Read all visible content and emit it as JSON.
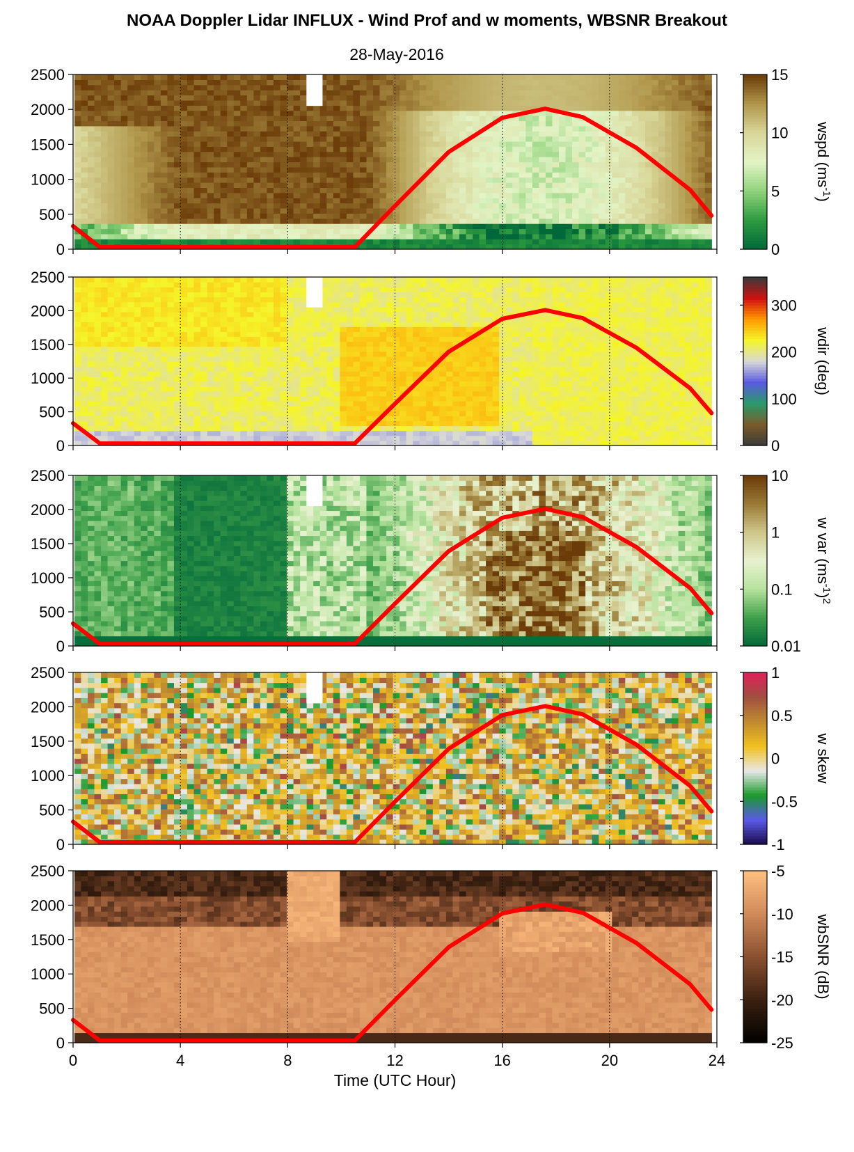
{
  "title": "NOAA Doppler Lidar INFLUX - Wind Prof and w moments, WBSNR Breakout",
  "subtitle": "28-May-2016",
  "colors": {
    "sun_curve": "#ff0000",
    "wspd": [
      "#00683a",
      "#2d9a3f",
      "#8fd27a",
      "#e3f4c6",
      "#d9d79a",
      "#b0964a",
      "#6b3b08"
    ],
    "wdir": [
      "#3a3a3a",
      "#7a5a2a",
      "#2a9a6a",
      "#5a5ae0",
      "#d8d8d8",
      "#f5f52a",
      "#ff9a00",
      "#d01010",
      "#3a3a3a"
    ],
    "wvar": [
      "#00683a",
      "#3ea04a",
      "#b5e29c",
      "#e8f2cf",
      "#cfc78b",
      "#9a7a35",
      "#6b3b08"
    ],
    "wskew": [
      "#1a0a4a",
      "#5a5ae8",
      "#1a9a2a",
      "#e8e8e8",
      "#f0c020",
      "#c08a30",
      "#a05040",
      "#e0205a"
    ],
    "wbsnr": [
      "#000000",
      "#3a2010",
      "#8a5030",
      "#d08a5a",
      "#ffbf80"
    ]
  },
  "chart_data": [
    {
      "type": "heatmap",
      "name": "wspd",
      "xlabel": "Time (UTC Hour)",
      "ylabel": "",
      "xlim": [
        0,
        24
      ],
      "ylim": [
        0,
        2500
      ],
      "x_ticks": [
        0,
        4,
        8,
        12,
        16,
        20,
        24
      ],
      "y_ticks": [
        0,
        500,
        1000,
        1500,
        2000,
        2500
      ],
      "colorbar": {
        "label": "wspd (ms",
        "label_sup": "-1",
        "label_end": ")",
        "min": 0,
        "max": 15,
        "ticks": [
          "0",
          "5",
          "10",
          "15"
        ],
        "tick_values": [
          0,
          5,
          10,
          15
        ],
        "scale": "linear"
      },
      "sun_curve": {
        "x": [
          0,
          1,
          2,
          4,
          6,
          8,
          10,
          10.5,
          12,
          14,
          16,
          17.6,
          19,
          21,
          23,
          23.8
        ],
        "y": [
          330,
          30,
          30,
          30,
          30,
          30,
          30,
          30,
          620,
          1390,
          1880,
          2010,
          1890,
          1450,
          850,
          480
        ]
      }
    },
    {
      "type": "heatmap",
      "name": "wdir",
      "xlim": [
        0,
        24
      ],
      "ylim": [
        0,
        2500
      ],
      "x_ticks": [
        0,
        4,
        8,
        12,
        16,
        20,
        24
      ],
      "y_ticks": [
        0,
        500,
        1000,
        1500,
        2000,
        2500
      ],
      "colorbar": {
        "label": "wdir (deg)",
        "min": 0,
        "max": 360,
        "ticks": [
          "0",
          "100",
          "200",
          "300"
        ],
        "tick_values": [
          0,
          100,
          200,
          300
        ],
        "scale": "linear"
      },
      "sun_curve": {
        "x": [
          0,
          1,
          2,
          4,
          6,
          8,
          10,
          10.5,
          12,
          14,
          16,
          17.6,
          19,
          21,
          23,
          23.8
        ],
        "y": [
          330,
          30,
          30,
          30,
          30,
          30,
          30,
          30,
          620,
          1390,
          1880,
          2010,
          1890,
          1450,
          850,
          480
        ]
      }
    },
    {
      "type": "heatmap",
      "name": "w var",
      "xlim": [
        0,
        24
      ],
      "ylim": [
        0,
        2500
      ],
      "x_ticks": [
        0,
        4,
        8,
        12,
        16,
        20,
        24
      ],
      "y_ticks": [
        0,
        500,
        1000,
        1500,
        2000,
        2500
      ],
      "colorbar": {
        "label": "w var (ms",
        "label_sup": "-1",
        "label_end": ")",
        "label_sup2": "2",
        "min": 0.01,
        "max": 10,
        "ticks": [
          "0.01",
          "0.1",
          "1",
          "10"
        ],
        "tick_values": [
          0.01,
          0.1,
          1,
          10
        ],
        "scale": "log"
      },
      "sun_curve": {
        "x": [
          0,
          1,
          2,
          4,
          6,
          8,
          10,
          10.5,
          12,
          14,
          16,
          17.6,
          19,
          21,
          23,
          23.8
        ],
        "y": [
          330,
          30,
          30,
          30,
          30,
          30,
          30,
          30,
          620,
          1390,
          1880,
          2010,
          1890,
          1450,
          850,
          480
        ]
      }
    },
    {
      "type": "heatmap",
      "name": "w skew",
      "xlim": [
        0,
        24
      ],
      "ylim": [
        0,
        2500
      ],
      "x_ticks": [
        0,
        4,
        8,
        12,
        16,
        20,
        24
      ],
      "y_ticks": [
        0,
        500,
        1000,
        1500,
        2000,
        2500
      ],
      "colorbar": {
        "label": "w skew",
        "min": -1,
        "max": 1,
        "ticks": [
          "-1",
          "-0.5",
          "0",
          "0.5",
          "1"
        ],
        "tick_values": [
          -1,
          -0.5,
          0,
          0.5,
          1
        ],
        "scale": "linear"
      },
      "sun_curve": {
        "x": [
          0,
          1,
          2,
          4,
          6,
          8,
          10,
          10.5,
          12,
          14,
          16,
          17.6,
          19,
          21,
          23,
          23.8
        ],
        "y": [
          330,
          30,
          30,
          30,
          30,
          30,
          30,
          30,
          620,
          1390,
          1880,
          2010,
          1890,
          1450,
          850,
          480
        ]
      }
    },
    {
      "type": "heatmap",
      "name": "wbSNR",
      "xlim": [
        0,
        24
      ],
      "ylim": [
        0,
        2500
      ],
      "x_ticks": [
        0,
        4,
        8,
        12,
        16,
        20,
        24
      ],
      "y_ticks": [
        0,
        500,
        1000,
        1500,
        2000,
        2500
      ],
      "colorbar": {
        "label": "wbSNR (dB)",
        "min": -25,
        "max": -5,
        "ticks": [
          "-25",
          "-20",
          "-15",
          "-10",
          "-5"
        ],
        "tick_values": [
          -25,
          -20,
          -15,
          -10,
          -5
        ],
        "scale": "linear"
      },
      "sun_curve": {
        "x": [
          0,
          1,
          2,
          4,
          6,
          8,
          10,
          10.5,
          12,
          14,
          16,
          17.6,
          19,
          21,
          23,
          23.8
        ],
        "y": [
          330,
          30,
          30,
          30,
          30,
          30,
          30,
          30,
          620,
          1390,
          1880,
          2010,
          1890,
          1450,
          850,
          480
        ]
      }
    }
  ]
}
